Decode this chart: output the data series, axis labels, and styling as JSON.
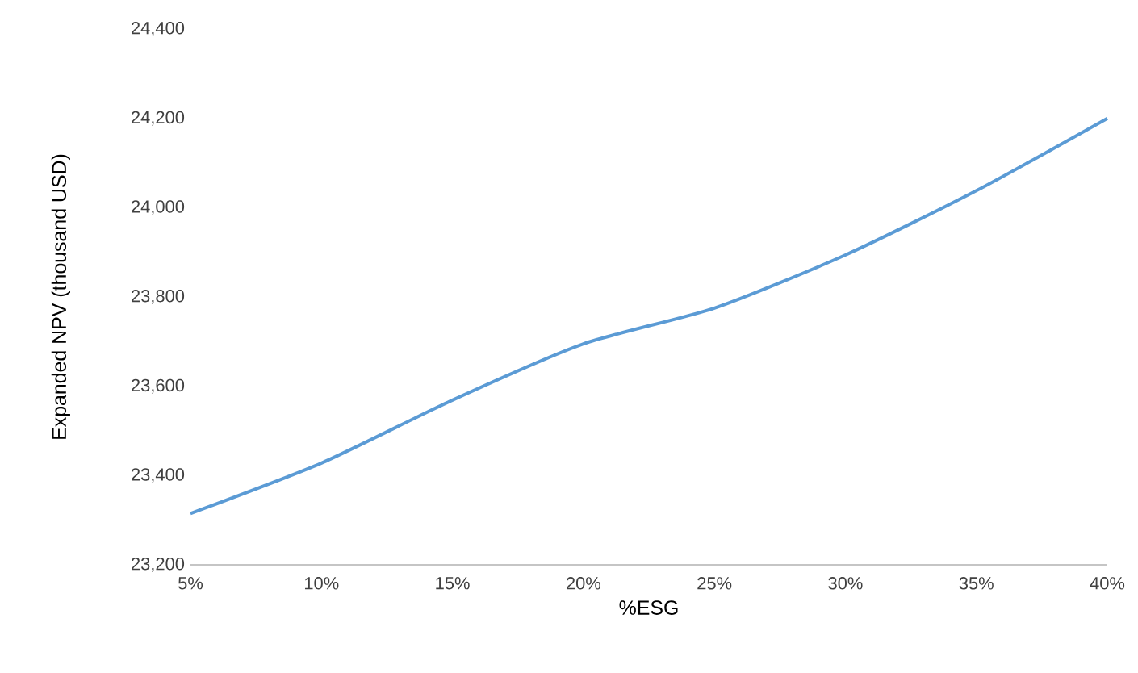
{
  "chart_data": {
    "type": "line",
    "xlabel": "%ESG",
    "ylabel": "Expanded NPV (thousand USD)",
    "x": [
      5,
      10,
      15,
      20,
      25,
      30,
      35,
      40
    ],
    "series": [
      {
        "color": "#5b9bd5",
        "values": [
          23315,
          23428,
          23569,
          23695,
          23775,
          23894,
          24038,
          24200
        ]
      }
    ],
    "xlim": [
      5,
      40
    ],
    "xticks": [
      {
        "value": 5,
        "label": "5%"
      },
      {
        "value": 10,
        "label": "10%"
      },
      {
        "value": 15,
        "label": "15%"
      },
      {
        "value": 20,
        "label": "20%"
      },
      {
        "value": 25,
        "label": "25%"
      },
      {
        "value": 30,
        "label": "30%"
      },
      {
        "value": 35,
        "label": "35%"
      },
      {
        "value": 40,
        "label": "40%"
      }
    ],
    "ylim": [
      23200,
      24400
    ],
    "yticks": [
      {
        "value": 23200,
        "label": "23,200"
      },
      {
        "value": 23400,
        "label": "23,400"
      },
      {
        "value": 23600,
        "label": "23,600"
      },
      {
        "value": 23800,
        "label": "23,800"
      },
      {
        "value": 24000,
        "label": "24,000"
      },
      {
        "value": 24200,
        "label": "24,200"
      },
      {
        "value": 24400,
        "label": "24,400"
      }
    ],
    "grid": false,
    "marker": "none",
    "line_style": "solid"
  }
}
